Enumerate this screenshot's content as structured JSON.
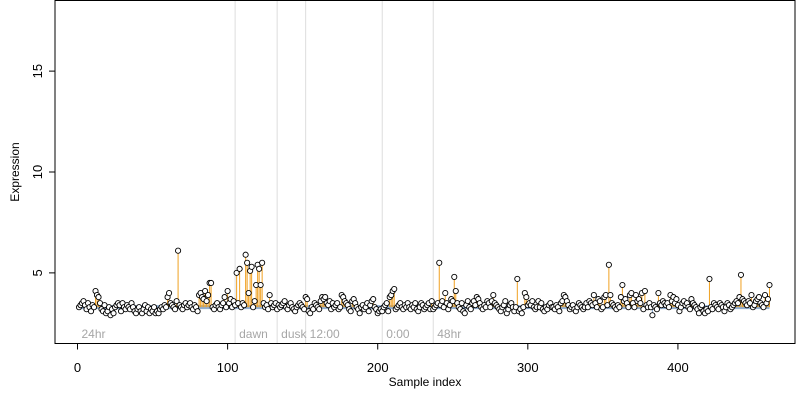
{
  "chart_data": {
    "type": "scatter",
    "xlabel": "Sample index",
    "ylabel": "Expression",
    "xlim": [
      -15,
      478
    ],
    "ylim": [
      1.5,
      18.5
    ],
    "x_ticks": [
      {
        "value": 0,
        "label": "0"
      },
      {
        "value": 100,
        "label": "100"
      },
      {
        "value": 200,
        "label": "200"
      },
      {
        "value": 300,
        "label": "300"
      },
      {
        "value": 400,
        "label": "400"
      }
    ],
    "y_ticks": [
      {
        "value": 5,
        "label": "5"
      },
      {
        "value": 10,
        "label": "10"
      },
      {
        "value": 15,
        "label": "15"
      }
    ],
    "colors": {
      "baseline": "#7ea0c8",
      "stem": "#f0a020",
      "point_fill": "#ffffff",
      "point_stroke": "#000000",
      "annotation_line": "#dddddd",
      "annotation_text": "#a6a6a6"
    },
    "baseline_value": 3.3,
    "annotations": [
      {
        "x": 0,
        "label": "24hr"
      },
      {
        "x": 105,
        "label": "dawn"
      },
      {
        "x": 133,
        "label": "dusk"
      },
      {
        "x": 152,
        "label": "12:00"
      },
      {
        "x": 203,
        "label": "0:00"
      },
      {
        "x": 237,
        "label": "48hr"
      }
    ],
    "series": [
      {
        "values": [
          3.3,
          3.4,
          3.5,
          3.6,
          3.4,
          3.2,
          3.5,
          3.3,
          3.1,
          3.4,
          3.3,
          4.1,
          3.9,
          3.8,
          3.5,
          3.2,
          3.1,
          3.4,
          3.0,
          3.1,
          3.3,
          2.9,
          3.2,
          3.0,
          3.3,
          3.4,
          3.5,
          3.4,
          3.1,
          3.5,
          3.3,
          3.2,
          3.4,
          3.3,
          3.2,
          3.5,
          3.3,
          3.1,
          3.0,
          3.2,
          3.3,
          3.1,
          3.0,
          3.2,
          3.4,
          3.1,
          3.3,
          3.0,
          3.2,
          3.1,
          3.3,
          3.0,
          3.1,
          3.0,
          3.2,
          3.3,
          3.2,
          3.4,
          3.3,
          3.8,
          4.0,
          3.5,
          3.4,
          3.3,
          3.2,
          3.6,
          6.1,
          3.4,
          3.3,
          3.2,
          3.4,
          3.5,
          3.3,
          3.4,
          3.5,
          3.3,
          3.2,
          3.4,
          3.3,
          3.1,
          3.9,
          4.0,
          3.8,
          3.7,
          4.1,
          3.6,
          3.9,
          4.5,
          4.5,
          3.3,
          3.2,
          3.4,
          3.5,
          3.3,
          3.2,
          3.4,
          3.5,
          3.8,
          3.3,
          4.1,
          3.5,
          3.7,
          3.3,
          3.6,
          3.4,
          5.0,
          3.5,
          5.2,
          3.3,
          3.5,
          3.4,
          5.9,
          5.5,
          4.0,
          5.1,
          5.3,
          3.3,
          3.6,
          4.4,
          5.4,
          5.2,
          4.4,
          5.5,
          3.5,
          3.3,
          3.4,
          3.2,
          3.9,
          3.5,
          3.3,
          3.4,
          3.5,
          3.2,
          3.4,
          3.3,
          3.4,
          3.5,
          3.6,
          3.3,
          3.2,
          3.4,
          3.5,
          3.3,
          3.2,
          3.1,
          3.3,
          3.4,
          3.5,
          3.4,
          3.3,
          3.2,
          3.8,
          3.7,
          3.1,
          3.0,
          3.3,
          3.2,
          3.5,
          3.4,
          3.3,
          3.2,
          3.6,
          3.8,
          3.7,
          3.8,
          3.5,
          3.4,
          3.6,
          3.2,
          3.5,
          3.3,
          3.4,
          3.5,
          3.2,
          3.3,
          3.9,
          3.8,
          3.6,
          3.5,
          3.4,
          3.2,
          3.1,
          3.6,
          3.7,
          3.5,
          3.3,
          3.2,
          3.0,
          3.3,
          3.4,
          3.2,
          3.3,
          3.5,
          3.1,
          3.4,
          3.6,
          3.7,
          3.3,
          3.2,
          3.0,
          3.1,
          3.2,
          3.1,
          3.3,
          3.4,
          3.5,
          3.1,
          3.8,
          3.9,
          4.1,
          4.2,
          3.2,
          3.3,
          3.4,
          3.5,
          3.3,
          3.2,
          3.4,
          3.3,
          3.5,
          3.3,
          3.2,
          3.4,
          3.3,
          3.5,
          3.2,
          3.1,
          3.3,
          3.5,
          3.4,
          3.2,
          3.3,
          3.4,
          3.5,
          3.2,
          3.6,
          3.2,
          3.3,
          3.4,
          3.5,
          5.5,
          3.4,
          3.6,
          3.3,
          4.0,
          3.5,
          3.2,
          3.4,
          3.7,
          3.6,
          4.8,
          4.1,
          3.5,
          3.3,
          3.2,
          3.5,
          3.1,
          3.0,
          3.4,
          3.6,
          3.3,
          3.2,
          3.5,
          3.6,
          3.4,
          3.8,
          3.7,
          3.5,
          3.3,
          3.2,
          3.4,
          3.3,
          3.6,
          3.5,
          3.3,
          3.6,
          3.9,
          3.5,
          3.4,
          3.3,
          3.2,
          3.1,
          3.3,
          3.4,
          3.6,
          3.0,
          3.2,
          3.4,
          3.5,
          3.3,
          3.1,
          3.3,
          4.7,
          3.1,
          3.2,
          3.0,
          3.3,
          4.0,
          3.8,
          3.4,
          3.5,
          3.4,
          3.6,
          3.3,
          3.2,
          3.3,
          3.6,
          3.3,
          3.5,
          3.2,
          3.1,
          3.3,
          3.2,
          3.4,
          3.5,
          3.3,
          3.3,
          3.2,
          3.4,
          3.3,
          3.1,
          3.5,
          3.6,
          3.9,
          3.8,
          3.6,
          3.4,
          3.2,
          3.3,
          3.4,
          3.2,
          3.1,
          3.3,
          3.5,
          3.4,
          3.3,
          3.2,
          3.3,
          3.5,
          3.3,
          3.6,
          3.5,
          3.4,
          3.9,
          3.5,
          3.3,
          3.7,
          3.6,
          3.2,
          3.3,
          3.8,
          3.9,
          3.4,
          5.4,
          3.9,
          3.5,
          3.4,
          3.3,
          3.2,
          3.4,
          3.3,
          3.8,
          4.4,
          3.6,
          3.7,
          3.5,
          3.3,
          3.9,
          4.0,
          3.5,
          3.3,
          3.9,
          3.6,
          3.7,
          3.5,
          4.0,
          3.2,
          4.1,
          3.4,
          3.3,
          3.5,
          3.3,
          2.9,
          3.4,
          3.3,
          3.2,
          4.0,
          3.5,
          3.4,
          3.6,
          3.5,
          3.4,
          3.5,
          3.3,
          3.9,
          3.6,
          3.8,
          3.5,
          3.7,
          3.4,
          3.1,
          3.3,
          3.5,
          3.6,
          3.4,
          3.5,
          3.3,
          3.2,
          3.7,
          3.5,
          3.4,
          3.3,
          3.2,
          3.0,
          3.3,
          3.4,
          3.1,
          3.0,
          3.2,
          3.1,
          4.7,
          3.3,
          3.2,
          3.5,
          3.4,
          3.3,
          3.2,
          3.5,
          3.4,
          3.3,
          3.1,
          3.3,
          3.5,
          3.4,
          3.2,
          3.3,
          3.4,
          3.5,
          3.6,
          3.5,
          3.8,
          4.9,
          3.7,
          3.6,
          3.5,
          3.4,
          3.6,
          3.5,
          3.9,
          3.3,
          3.4,
          3.6,
          3.7,
          3.8,
          3.5,
          3.4,
          3.3,
          3.9,
          3.5,
          3.7,
          4.4
        ]
      }
    ]
  }
}
